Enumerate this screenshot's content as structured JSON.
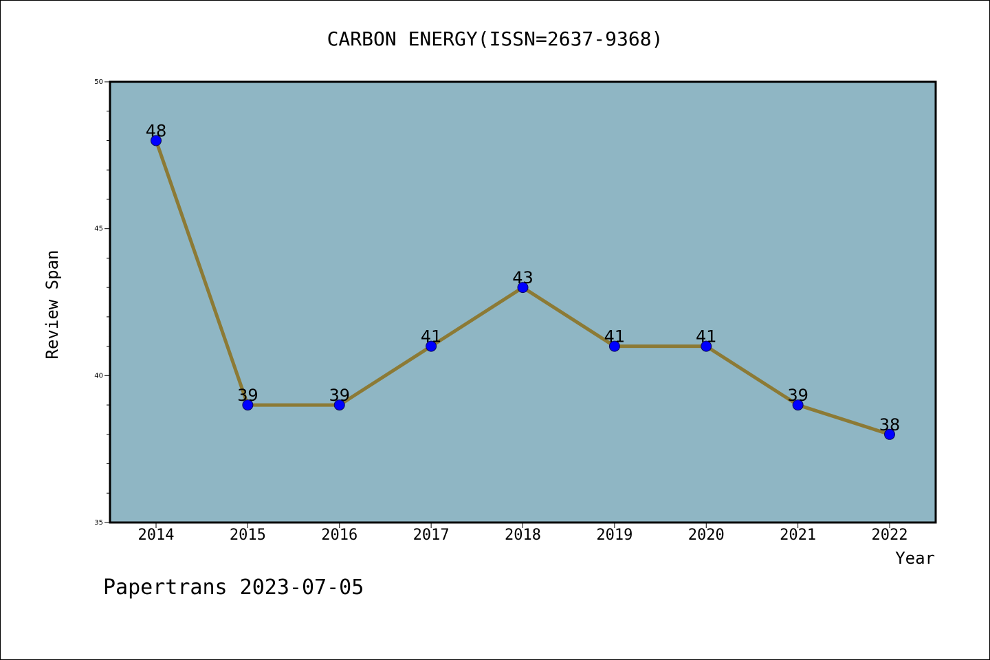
{
  "chart_data": {
    "type": "line",
    "title": "CARBON ENERGY(ISSN=2637-9368)",
    "xlabel": "Year",
    "ylabel": "Review Span",
    "categories": [
      "2014",
      "2015",
      "2016",
      "2017",
      "2018",
      "2019",
      "2020",
      "2021",
      "2022"
    ],
    "series": [
      {
        "values": [
          48,
          39,
          39,
          41,
          43,
          41,
          41,
          39,
          38
        ]
      }
    ],
    "ylim": [
      35,
      50
    ],
    "yticks": [
      35,
      40,
      45,
      50
    ],
    "grid": false,
    "legend": "none",
    "data_labels": true,
    "colors": {
      "plot_background": "#8fb6c4",
      "line": "#8c7a35",
      "marker": "#0000ff"
    }
  },
  "footer": {
    "text": "Papertrans 2023-07-05"
  }
}
